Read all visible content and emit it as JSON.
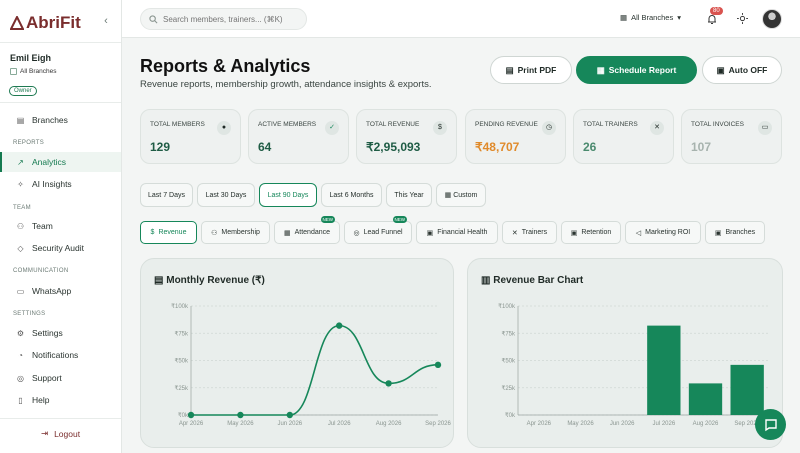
{
  "app": {
    "brand": "AbriFit"
  },
  "user": {
    "name": "Emil Eigh",
    "branch": "All Branches",
    "role": "Owner"
  },
  "sidebar": {
    "items": [
      {
        "label": "Branches",
        "icon": "branch-icon"
      },
      {
        "section": "REPORTS"
      },
      {
        "label": "Analytics",
        "icon": "chart-line-icon",
        "active": true
      },
      {
        "label": "AI Insights",
        "icon": "ai-icon"
      },
      {
        "section": "TEAM"
      },
      {
        "label": "Team",
        "icon": "team-icon"
      },
      {
        "label": "Security Audit",
        "icon": "shield-icon"
      },
      {
        "section": "COMMUNICATION"
      },
      {
        "label": "WhatsApp",
        "icon": "chat-icon"
      },
      {
        "section": "SETTINGS"
      },
      {
        "label": "Settings",
        "icon": "gear-icon"
      },
      {
        "label": "Notifications",
        "icon": "bell-icon"
      },
      {
        "label": "Support",
        "icon": "support-icon"
      },
      {
        "label": "Help",
        "icon": "help-icon"
      }
    ],
    "logout": "Logout"
  },
  "topbar": {
    "search_placeholder": "Search members, trainers... (⌘K)",
    "branch": "All Branches",
    "notif_count": "80"
  },
  "header": {
    "title": "Reports & Analytics",
    "subtitle": "Revenue reports, membership growth, attendance insights & exports.",
    "print_label": "Print PDF",
    "schedule_label": "Schedule Report",
    "auto_label": "Auto OFF"
  },
  "kpis": [
    {
      "label": "TOTAL MEMBERS",
      "value": "129",
      "color": "#1f5c45"
    },
    {
      "label": "ACTIVE MEMBERS",
      "value": "64",
      "color": "#1f5c45"
    },
    {
      "label": "TOTAL REVENUE",
      "value": "₹2,95,093",
      "color": "#1f5c45"
    },
    {
      "label": "PENDING REVENUE",
      "value": "₹48,707",
      "color": "#e08a2a"
    },
    {
      "label": "TOTAL TRAINERS",
      "value": "26",
      "color": "#4a8a6e"
    },
    {
      "label": "TOTAL INVOICES",
      "value": "107",
      "color": "#a7b3ae"
    }
  ],
  "ranges": [
    "Last 7 Days",
    "Last 30 Days",
    "Last 90 Days",
    "Last 6 Months",
    "This Year",
    "Custom"
  ],
  "active_range": "Last 90 Days",
  "tabs": [
    {
      "label": "Revenue",
      "active": true
    },
    {
      "label": "Membership"
    },
    {
      "label": "Attendance",
      "new": "NEW"
    },
    {
      "label": "Lead Funnel",
      "new": "NEW"
    },
    {
      "label": "Financial Health"
    },
    {
      "label": "Trainers"
    },
    {
      "label": "Retention"
    },
    {
      "label": "Marketing ROI"
    },
    {
      "label": "Branches"
    }
  ],
  "line_card": {
    "title": "Monthly Revenue (₹)"
  },
  "bar_card": {
    "title": "Revenue Bar Chart"
  },
  "chart_data": [
    {
      "type": "line",
      "title": "Monthly Revenue (₹)",
      "categories": [
        "Apr 2026",
        "May 2026",
        "Jun 2026",
        "Jul 2026",
        "Aug 2026",
        "Sep 2026"
      ],
      "values": [
        0,
        0,
        0,
        82000,
        29000,
        46000
      ],
      "y_ticks": [
        "₹0k",
        "₹25k",
        "₹50k",
        "₹75k",
        "₹100k"
      ],
      "ylim": [
        0,
        100000
      ],
      "color": "#16875a"
    },
    {
      "type": "bar",
      "title": "Revenue Bar Chart",
      "categories": [
        "Apr 2026",
        "May 2026",
        "Jun 2026",
        "Jul 2026",
        "Aug 2026",
        "Sep 2026"
      ],
      "values": [
        0,
        0,
        0,
        82000,
        29000,
        46000
      ],
      "y_ticks": [
        "₹0k",
        "₹25k",
        "₹50k",
        "₹75k",
        "₹100k"
      ],
      "ylim": [
        0,
        100000
      ],
      "color": "#16875a"
    }
  ]
}
